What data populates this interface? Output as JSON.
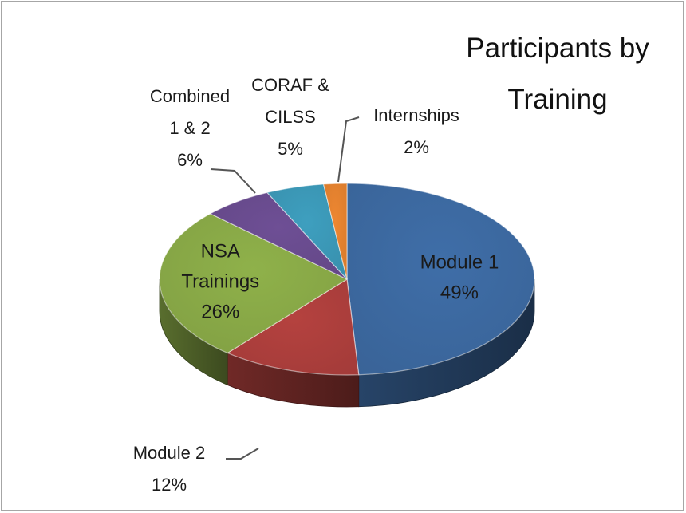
{
  "chart_data": {
    "type": "pie",
    "style": "3d-tilted",
    "title_lines": [
      "Participants by",
      "Training"
    ],
    "slices": [
      {
        "name_lines": [
          "Module 1"
        ],
        "value": 49,
        "value_label": "49%",
        "color": "#3f6ea8",
        "label_position": "inside"
      },
      {
        "name_lines": [
          "Module 2"
        ],
        "value": 12,
        "value_label": "12%",
        "color": "#b5423f",
        "label_position": "outside-bottom-left"
      },
      {
        "name_lines": [
          "NSA",
          "Trainings"
        ],
        "value": 26,
        "value_label": "26%",
        "color": "#8fb14a",
        "label_position": "inside"
      },
      {
        "name_lines": [
          "Combined",
          "1 & 2"
        ],
        "value": 6,
        "value_label": "6%",
        "color": "#6e4f95",
        "label_position": "outside-top-left"
      },
      {
        "name_lines": [
          "CORAF &",
          "CILSS"
        ],
        "value": 5,
        "value_label": "5%",
        "color": "#3e9fbf",
        "label_position": "outside-top"
      },
      {
        "name_lines": [
          "Internships"
        ],
        "value": 2,
        "value_label": "2%",
        "color": "#ee8731",
        "label_position": "outside-top-right"
      }
    ],
    "legend": "none"
  }
}
